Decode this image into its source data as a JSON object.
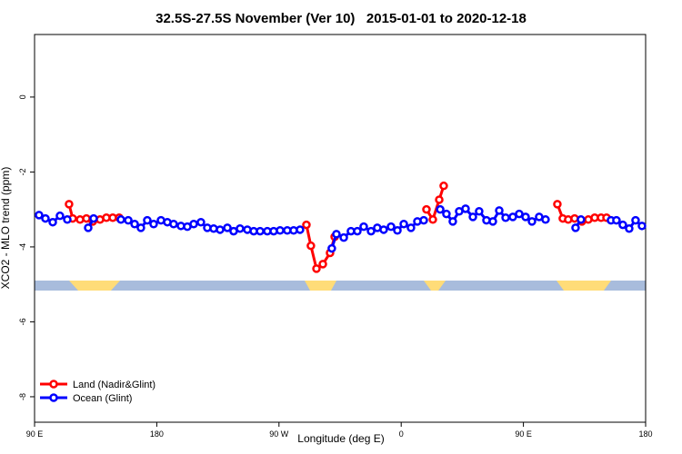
{
  "chart_data": {
    "type": "line",
    "title": "32.5S-27.5S November (Ver 10)   2015-01-01 to 2020-12-18",
    "x_label": "Longitude (deg E)",
    "y_label": "XCO2 - MLO trend (ppm)",
    "xlim": [
      90,
      540
    ],
    "ylim": [
      -8.68,
      1.67
    ],
    "xticks": [
      {
        "value": 90,
        "label": "90 E"
      },
      180,
      {
        "value": 270,
        "label": "90 W"
      },
      {
        "value": 360,
        "label": "0"
      },
      {
        "value": 450,
        "label": "90 E"
      },
      {
        "value": 540,
        "label": "180"
      }
    ],
    "yticks": [
      0,
      -2,
      -4,
      -6,
      -8
    ],
    "grid": false,
    "legend": "bottom-left",
    "series": [
      {
        "name": "Land (Nadir&Glint)",
        "color": "#ff0000",
        "x": [
          115.4,
          118.1,
          123.5,
          128.2,
          132.9,
          138.2,
          142.9,
          147.6,
          152.3,
          null,
          290.2,
          293.5,
          297.6,
          302.3,
          307.6,
          311.0,
          null,
          378.6,
          383.3,
          388.0,
          391.3,
          null,
          475.0,
          479.0,
          483.0,
          487.7,
          493.1,
          497.8,
          502.5,
          507.2,
          511.2
        ],
        "values": [
          -2.86,
          -3.24,
          -3.27,
          -3.24,
          -3.32,
          -3.27,
          -3.22,
          -3.22,
          -3.22,
          null,
          -3.41,
          -3.97,
          -4.58,
          -4.46,
          -4.16,
          -3.73,
          null,
          -3.0,
          -3.27,
          -2.74,
          -2.37,
          null,
          -2.86,
          -3.24,
          -3.27,
          -3.24,
          -3.32,
          -3.27,
          -3.22,
          -3.22,
          -3.22
        ]
      },
      {
        "name": "Ocean (Glint)",
        "color": "#0000ff",
        "x": [
          93.3,
          98.0,
          103.4,
          108.7,
          114.1,
          null,
          129.5,
          133.5,
          null,
          153.6,
          159.0,
          163.7,
          168.3,
          173.0,
          177.7,
          183.1,
          187.8,
          192.4,
          197.8,
          202.5,
          207.2,
          212.5,
          217.2,
          221.9,
          226.6,
          232.0,
          236.6,
          241.3,
          246.7,
          251.4,
          256.1,
          261.4,
          266.1,
          270.8,
          276.1,
          280.8,
          285.5,
          null,
          308.9,
          312.3,
          317.7,
          323.0,
          327.7,
          332.4,
          337.8,
          342.4,
          347.1,
          352.5,
          357.2,
          361.9,
          367.2,
          371.9,
          376.6,
          null,
          388.7,
          393.3,
          398.0,
          402.7,
          407.4,
          412.8,
          417.4,
          422.8,
          427.5,
          432.2,
          436.9,
          442.2,
          446.9,
          451.6,
          456.3,
          461.6,
          466.3,
          null,
          488.4,
          492.4,
          null,
          514.5,
          518.5,
          523.2,
          527.9,
          532.6,
          537.3
        ],
        "values": [
          -3.15,
          -3.24,
          -3.34,
          -3.17,
          -3.27,
          null,
          -3.49,
          -3.24,
          null,
          -3.27,
          -3.29,
          -3.39,
          -3.49,
          -3.29,
          -3.39,
          -3.29,
          -3.34,
          -3.39,
          -3.44,
          -3.46,
          -3.39,
          -3.34,
          -3.49,
          -3.51,
          -3.54,
          -3.49,
          -3.58,
          -3.51,
          -3.54,
          -3.58,
          -3.58,
          -3.58,
          -3.58,
          -3.56,
          -3.56,
          -3.56,
          -3.54,
          null,
          -4.04,
          -3.66,
          -3.75,
          -3.58,
          -3.58,
          -3.46,
          -3.58,
          -3.49,
          -3.54,
          -3.46,
          -3.56,
          -3.39,
          -3.49,
          -3.32,
          -3.29,
          null,
          -3.0,
          -3.12,
          -3.32,
          -3.05,
          -2.98,
          -3.2,
          -3.05,
          -3.29,
          -3.32,
          -3.03,
          -3.22,
          -3.2,
          -3.12,
          -3.2,
          -3.32,
          -3.2,
          -3.27,
          null,
          -3.49,
          -3.27,
          null,
          -3.29,
          -3.29,
          -3.41,
          -3.51,
          -3.29,
          -3.44
        ]
      }
    ]
  }
}
